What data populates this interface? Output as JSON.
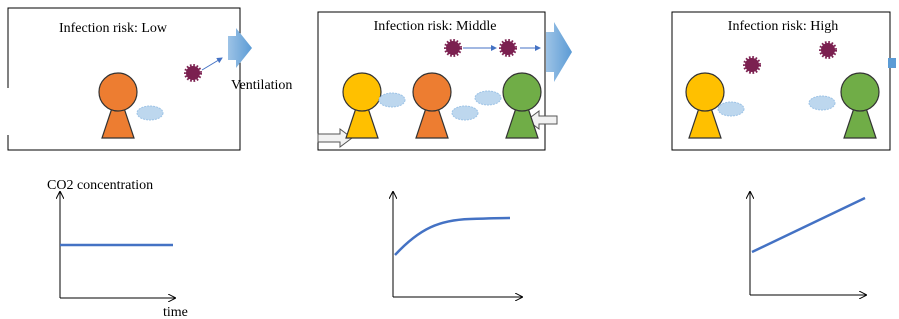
{
  "panels": [
    {
      "title": "Infection risk: Low",
      "ventilation_label": "Ventilation"
    },
    {
      "title": "Infection risk: Middle"
    },
    {
      "title": "Infection risk: High"
    }
  ],
  "graph": {
    "y_axis_label": "CO2 concentration",
    "x_axis_label": "time"
  }
}
